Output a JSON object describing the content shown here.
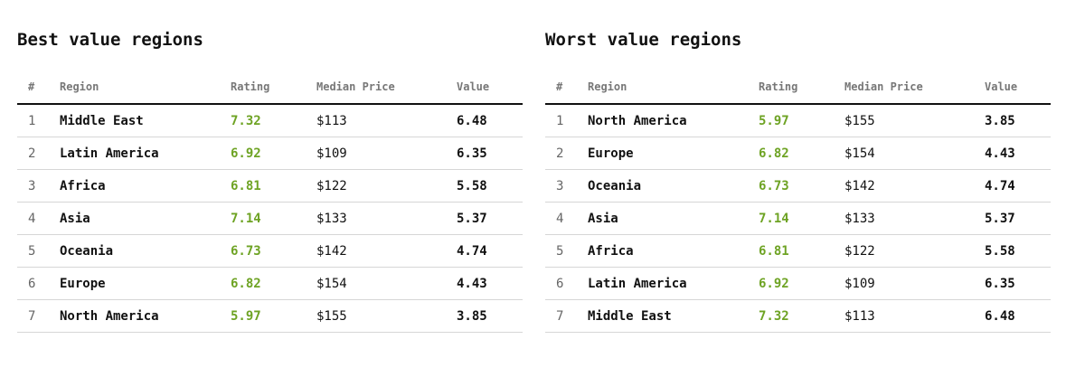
{
  "colors": {
    "rating": "#6ea324",
    "text": "#111111",
    "muted": "#777777",
    "rule": "#d6d6d6"
  },
  "panels": [
    {
      "title": "Best value regions",
      "columns": [
        "#",
        "Region",
        "Rating",
        "Median Price",
        "Value"
      ],
      "rows": [
        {
          "idx": "1",
          "region": "Middle East",
          "rating": "7.32",
          "price": "$113",
          "value": "6.48"
        },
        {
          "idx": "2",
          "region": "Latin America",
          "rating": "6.92",
          "price": "$109",
          "value": "6.35"
        },
        {
          "idx": "3",
          "region": "Africa",
          "rating": "6.81",
          "price": "$122",
          "value": "5.58"
        },
        {
          "idx": "4",
          "region": "Asia",
          "rating": "7.14",
          "price": "$133",
          "value": "5.37"
        },
        {
          "idx": "5",
          "region": "Oceania",
          "rating": "6.73",
          "price": "$142",
          "value": "4.74"
        },
        {
          "idx": "6",
          "region": "Europe",
          "rating": "6.82",
          "price": "$154",
          "value": "4.43"
        },
        {
          "idx": "7",
          "region": "North America",
          "rating": "5.97",
          "price": "$155",
          "value": "3.85"
        }
      ]
    },
    {
      "title": "Worst value regions",
      "columns": [
        "#",
        "Region",
        "Rating",
        "Median Price",
        "Value"
      ],
      "rows": [
        {
          "idx": "1",
          "region": "North America",
          "rating": "5.97",
          "price": "$155",
          "value": "3.85"
        },
        {
          "idx": "2",
          "region": "Europe",
          "rating": "6.82",
          "price": "$154",
          "value": "4.43"
        },
        {
          "idx": "3",
          "region": "Oceania",
          "rating": "6.73",
          "price": "$142",
          "value": "4.74"
        },
        {
          "idx": "4",
          "region": "Asia",
          "rating": "7.14",
          "price": "$133",
          "value": "5.37"
        },
        {
          "idx": "5",
          "region": "Africa",
          "rating": "6.81",
          "price": "$122",
          "value": "5.58"
        },
        {
          "idx": "6",
          "region": "Latin America",
          "rating": "6.92",
          "price": "$109",
          "value": "6.35"
        },
        {
          "idx": "7",
          "region": "Middle East",
          "rating": "7.32",
          "price": "$113",
          "value": "6.48"
        }
      ]
    }
  ]
}
